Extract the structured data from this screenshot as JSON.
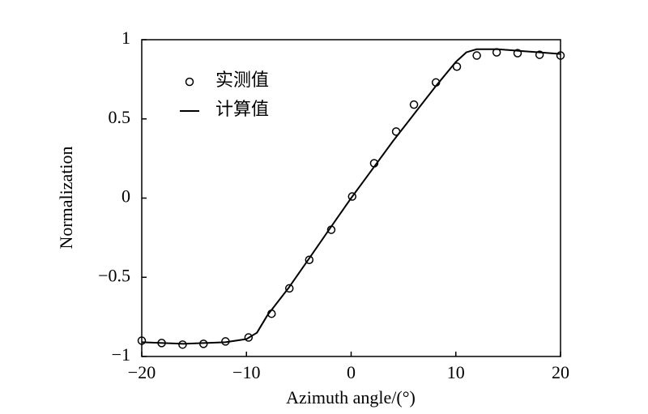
{
  "chart_data": {
    "type": "line",
    "xlabel": "Azimuth angle/(°)",
    "ylabel": "Normalization",
    "xlim": [
      -20,
      20
    ],
    "ylim": [
      -1,
      1
    ],
    "xticks": [
      {
        "value": -20,
        "label": "−20"
      },
      {
        "value": -10,
        "label": "−10"
      },
      0,
      10,
      20
    ],
    "yticks": [
      {
        "value": -1,
        "label": "−1"
      },
      {
        "value": -0.5,
        "label": "−0.5"
      },
      0,
      0.5,
      1
    ],
    "legend": "upper left",
    "series": [
      {
        "name": "实测值",
        "color": "#000000",
        "mode": "markers",
        "x": [
          -20,
          -18.1,
          -16.1,
          -14.1,
          -12,
          -9.8,
          -7.6,
          -5.9,
          -4.0,
          -1.9,
          0.1,
          2.2,
          4.3,
          6.0,
          8.1,
          10.1,
          12.0,
          13.9,
          15.9,
          18.0,
          20
        ],
        "values": [
          -0.9,
          -0.915,
          -0.925,
          -0.92,
          -0.905,
          -0.88,
          -0.73,
          -0.57,
          -0.39,
          -0.2,
          0.01,
          0.22,
          0.42,
          0.59,
          0.73,
          0.83,
          0.9,
          0.92,
          0.915,
          0.905,
          0.9
        ]
      },
      {
        "name": "计算值",
        "color": "#000000",
        "mode": "line",
        "x": [
          -20,
          -16,
          -12,
          -10,
          -9,
          -8,
          -6,
          -4,
          -2,
          0,
          2,
          4,
          6,
          8,
          10,
          11,
          12,
          14,
          16,
          18,
          20
        ],
        "values": [
          -0.91,
          -0.92,
          -0.91,
          -0.89,
          -0.85,
          -0.74,
          -0.57,
          -0.38,
          -0.19,
          0,
          0.18,
          0.36,
          0.53,
          0.7,
          0.86,
          0.92,
          0.94,
          0.94,
          0.93,
          0.92,
          0.91
        ]
      }
    ]
  }
}
